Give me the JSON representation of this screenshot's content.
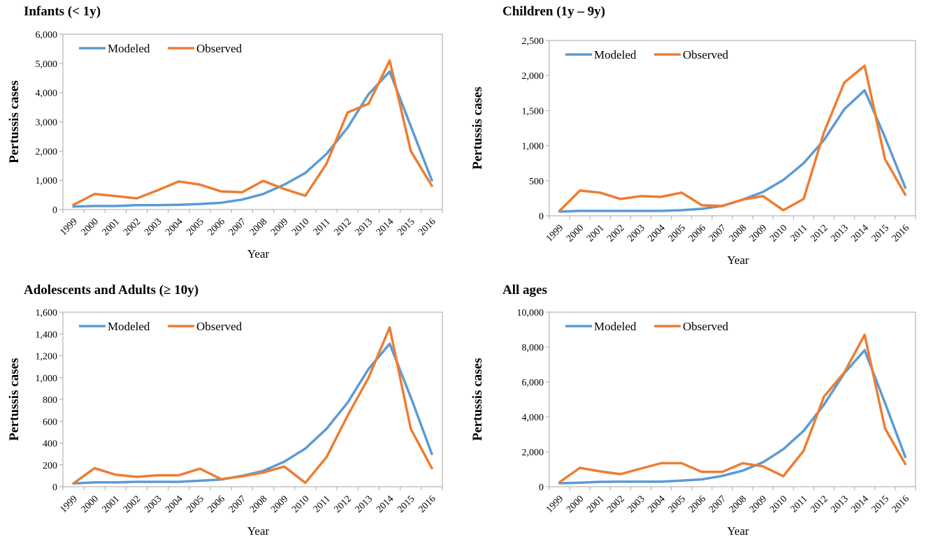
{
  "colors": {
    "modeled": "#5B9BD5",
    "observed": "#ED7D31",
    "axis": "#A6A6A6"
  },
  "chart_data": [
    {
      "type": "line",
      "title": "Infants (< 1y)",
      "xlabel": "Year",
      "ylabel": "Pertussis cases",
      "x": [
        "1999",
        "2000",
        "2001",
        "2002",
        "2003",
        "2004",
        "2005",
        "2006",
        "2007",
        "2008",
        "2009",
        "2010",
        "2011",
        "2012",
        "2013",
        "2014",
        "2015",
        "2016"
      ],
      "ylim": [
        0,
        6000
      ],
      "yticks": [
        0,
        1000,
        2000,
        3000,
        4000,
        5000,
        6000
      ],
      "ytick_labels": [
        "0",
        "1,000",
        "2,000",
        "3,000",
        "4,000",
        "5,000",
        "6,000"
      ],
      "legend_position": "top-left",
      "series": [
        {
          "name": "Modeled",
          "values": [
            100,
            120,
            120,
            150,
            150,
            160,
            190,
            230,
            340,
            530,
            850,
            1250,
            1900,
            2800,
            3950,
            4720,
            2850,
            1000
          ]
        },
        {
          "name": "Observed",
          "values": [
            160,
            530,
            460,
            380,
            660,
            960,
            850,
            620,
            590,
            980,
            700,
            470,
            1560,
            3320,
            3620,
            5100,
            2000,
            810
          ]
        }
      ]
    },
    {
      "type": "line",
      "title": "Children (1y – 9y)",
      "xlabel": "Year",
      "ylabel": "Pertussis cases",
      "x": [
        "1999",
        "2000",
        "2001",
        "2002",
        "2003",
        "2004",
        "2005",
        "2006",
        "2007",
        "2008",
        "2009",
        "2010",
        "2011",
        "2012",
        "2013",
        "2014",
        "2015",
        "2016"
      ],
      "ylim": [
        0,
        2500
      ],
      "yticks": [
        0,
        500,
        1000,
        1500,
        2000,
        2500
      ],
      "ytick_labels": [
        "0",
        "500",
        "1,000",
        "1,500",
        "2,000",
        "2,500"
      ],
      "legend_position": "top-left",
      "series": [
        {
          "name": "Modeled",
          "values": [
            60,
            70,
            70,
            70,
            70,
            70,
            80,
            100,
            140,
            230,
            340,
            510,
            750,
            1080,
            1520,
            1790,
            1120,
            400
          ]
        },
        {
          "name": "Observed",
          "values": [
            70,
            360,
            330,
            240,
            280,
            270,
            330,
            150,
            140,
            230,
            280,
            80,
            240,
            1190,
            1900,
            2140,
            810,
            300
          ]
        }
      ]
    },
    {
      "type": "line",
      "title": "Adolescents and Adults (≥ 10y)",
      "xlabel": "Year",
      "ylabel": "Pertussis cases",
      "x": [
        "1999",
        "2000",
        "2001",
        "2002",
        "2003",
        "2004",
        "2005",
        "2006",
        "2007",
        "2008",
        "2009",
        "2010",
        "2011",
        "2012",
        "2013",
        "2014",
        "2015",
        "2016"
      ],
      "ylim": [
        0,
        1600
      ],
      "yticks": [
        0,
        200,
        400,
        600,
        800,
        1000,
        1200,
        1400,
        1600
      ],
      "ytick_labels": [
        "0",
        "200",
        "400",
        "600",
        "800",
        "1,000",
        "1,200",
        "1,400",
        "1,600"
      ],
      "legend_position": "top-left",
      "series": [
        {
          "name": "Modeled",
          "values": [
            30,
            40,
            40,
            45,
            45,
            45,
            55,
            65,
            100,
            145,
            230,
            350,
            530,
            770,
            1080,
            1310,
            820,
            300
          ]
        },
        {
          "name": "Observed",
          "values": [
            30,
            170,
            110,
            90,
            105,
            105,
            165,
            70,
            95,
            130,
            185,
            35,
            270,
            650,
            1000,
            1460,
            530,
            170
          ]
        }
      ]
    },
    {
      "type": "line",
      "title": "All ages",
      "xlabel": "Year",
      "ylabel": "Pertussis cases",
      "x": [
        "1999",
        "2000",
        "2001",
        "2002",
        "2003",
        "2004",
        "2005",
        "2006",
        "2007",
        "2008",
        "2009",
        "2010",
        "2011",
        "2012",
        "2013",
        "2014",
        "2015",
        "2016"
      ],
      "ylim": [
        0,
        10000
      ],
      "yticks": [
        0,
        2000,
        4000,
        6000,
        8000,
        10000
      ],
      "ytick_labels": [
        "0",
        "2,000",
        "4,000",
        "6,000",
        "8,000",
        "10,000"
      ],
      "legend_position": "top-left",
      "series": [
        {
          "name": "Modeled",
          "values": [
            200,
            230,
            280,
            290,
            290,
            290,
            350,
            420,
            620,
            920,
            1400,
            2150,
            3200,
            4700,
            6500,
            7820,
            4800,
            1700
          ]
        },
        {
          "name": "Observed",
          "values": [
            260,
            1080,
            880,
            720,
            1040,
            1350,
            1350,
            850,
            850,
            1350,
            1170,
            600,
            2060,
            5160,
            6550,
            8700,
            3350,
            1300
          ]
        }
      ]
    }
  ]
}
